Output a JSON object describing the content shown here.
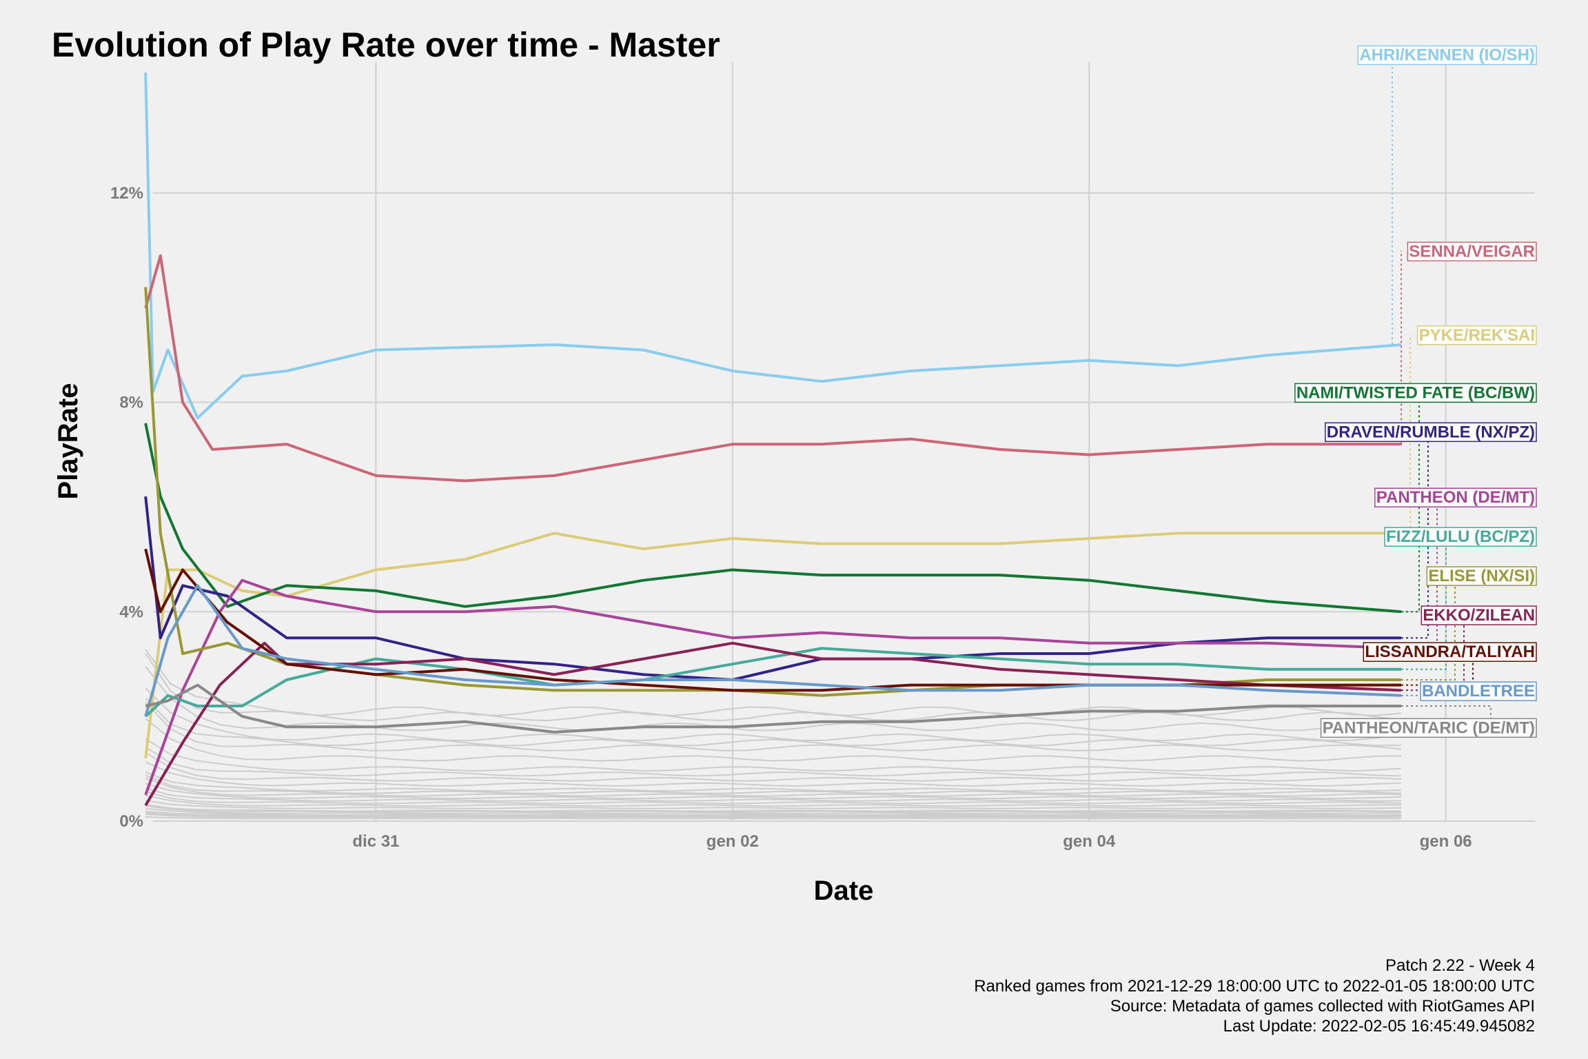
{
  "chart_data": {
    "type": "line",
    "title": "Evolution of Play Rate over time - Master",
    "xlabel": "Date",
    "ylabel": "PlayRate",
    "x_ticks": [
      "dic 31",
      "gen 02",
      "gen 04",
      "gen 06"
    ],
    "y_ticks": [
      "0%",
      "4%",
      "8%",
      "12%"
    ],
    "xlim": [
      "2021-12-29 18:00",
      "2022-01-06 12:00"
    ],
    "ylim": [
      0,
      14.5
    ],
    "grid": true,
    "legend": "direct labels at right",
    "captions": [
      "Patch 2.22 - Week 4",
      "Ranked games from 2021-12-29 18:00:00 UTC to 2022-01-05 18:00:00 UTC",
      "Source: Metadata of games collected with RiotGames API",
      "Last Update: 2022-02-05 16:45:49.945082"
    ],
    "series": [
      {
        "name": "AHRI/KENNEN (IO/SH)",
        "color": "#88ccee",
        "label_y": 14.65,
        "points": [
          [
            "2021-12-29 17:00",
            14.3
          ],
          [
            "2021-12-29 18:00",
            8.2
          ],
          [
            "2021-12-29 20:00",
            9.0
          ],
          [
            "2021-12-30 00:00",
            7.7
          ],
          [
            "2021-12-30 06:00",
            8.5
          ],
          [
            "2021-12-30 12:00",
            8.6
          ],
          [
            "2021-12-31 00:00",
            9.0
          ],
          [
            "2022-01-01 00:00",
            9.1
          ],
          [
            "2022-01-01 12:00",
            9.0
          ],
          [
            "2022-01-02 00:00",
            8.6
          ],
          [
            "2022-01-02 12:00",
            8.4
          ],
          [
            "2022-01-03 00:00",
            8.6
          ],
          [
            "2022-01-03 12:00",
            8.7
          ],
          [
            "2022-01-04 00:00",
            8.8
          ],
          [
            "2022-01-04 12:00",
            8.7
          ],
          [
            "2022-01-05 00:00",
            8.9
          ],
          [
            "2022-01-05 18:00",
            9.1
          ]
        ]
      },
      {
        "name": "SENNA/VEIGAR",
        "color": "#cc6677",
        "label_y": 10.9,
        "points": [
          [
            "2021-12-29 17:00",
            9.8
          ],
          [
            "2021-12-29 19:00",
            10.8
          ],
          [
            "2021-12-29 22:00",
            8.0
          ],
          [
            "2021-12-30 02:00",
            7.1
          ],
          [
            "2021-12-30 12:00",
            7.2
          ],
          [
            "2021-12-31 00:00",
            6.6
          ],
          [
            "2021-12-31 12:00",
            6.5
          ],
          [
            "2022-01-01 00:00",
            6.6
          ],
          [
            "2022-01-01 12:00",
            6.9
          ],
          [
            "2022-01-02 00:00",
            7.2
          ],
          [
            "2022-01-02 12:00",
            7.2
          ],
          [
            "2022-01-03 00:00",
            7.3
          ],
          [
            "2022-01-03 12:00",
            7.1
          ],
          [
            "2022-01-04 00:00",
            7.0
          ],
          [
            "2022-01-04 12:00",
            7.1
          ],
          [
            "2022-01-05 00:00",
            7.2
          ],
          [
            "2022-01-05 18:00",
            7.2
          ]
        ]
      },
      {
        "name": "PYKE/REK'SAI",
        "color": "#ddcc77",
        "label_y": 9.3,
        "points": [
          [
            "2021-12-29 17:00",
            1.2
          ],
          [
            "2021-12-29 20:00",
            4.8
          ],
          [
            "2021-12-30 00:00",
            4.8
          ],
          [
            "2021-12-30 06:00",
            4.4
          ],
          [
            "2021-12-30 12:00",
            4.3
          ],
          [
            "2021-12-31 00:00",
            4.8
          ],
          [
            "2021-12-31 12:00",
            5.0
          ],
          [
            "2022-01-01 00:00",
            5.5
          ],
          [
            "2022-01-01 12:00",
            5.2
          ],
          [
            "2022-01-02 00:00",
            5.4
          ],
          [
            "2022-01-02 12:00",
            5.3
          ],
          [
            "2022-01-03 00:00",
            5.3
          ],
          [
            "2022-01-03 12:00",
            5.3
          ],
          [
            "2022-01-04 00:00",
            5.4
          ],
          [
            "2022-01-04 12:00",
            5.5
          ],
          [
            "2022-01-05 00:00",
            5.5
          ],
          [
            "2022-01-05 18:00",
            5.5
          ]
        ]
      },
      {
        "name": "NAMI/TWISTED FATE (BC/BW)",
        "color": "#117733",
        "label_y": 8.2,
        "points": [
          [
            "2021-12-29 17:00",
            7.6
          ],
          [
            "2021-12-29 19:00",
            6.2
          ],
          [
            "2021-12-29 22:00",
            5.2
          ],
          [
            "2021-12-30 04:00",
            4.1
          ],
          [
            "2021-12-30 12:00",
            4.5
          ],
          [
            "2021-12-31 00:00",
            4.4
          ],
          [
            "2021-12-31 12:00",
            4.1
          ],
          [
            "2022-01-01 00:00",
            4.3
          ],
          [
            "2022-01-01 12:00",
            4.6
          ],
          [
            "2022-01-02 00:00",
            4.8
          ],
          [
            "2022-01-02 12:00",
            4.7
          ],
          [
            "2022-01-03 00:00",
            4.7
          ],
          [
            "2022-01-03 12:00",
            4.7
          ],
          [
            "2022-01-04 00:00",
            4.6
          ],
          [
            "2022-01-04 12:00",
            4.4
          ],
          [
            "2022-01-05 00:00",
            4.2
          ],
          [
            "2022-01-05 18:00",
            4.0
          ]
        ]
      },
      {
        "name": "DRAVEN/RUMBLE (NX/PZ)",
        "color": "#332288",
        "label_y": 7.45,
        "points": [
          [
            "2021-12-29 17:00",
            6.2
          ],
          [
            "2021-12-29 19:00",
            3.5
          ],
          [
            "2021-12-29 22:00",
            4.5
          ],
          [
            "2021-12-30 04:00",
            4.3
          ],
          [
            "2021-12-30 12:00",
            3.5
          ],
          [
            "2021-12-31 00:00",
            3.5
          ],
          [
            "2021-12-31 12:00",
            3.1
          ],
          [
            "2022-01-01 00:00",
            3.0
          ],
          [
            "2022-01-01 12:00",
            2.8
          ],
          [
            "2022-01-02 00:00",
            2.7
          ],
          [
            "2022-01-02 12:00",
            3.1
          ],
          [
            "2022-01-03 00:00",
            3.1
          ],
          [
            "2022-01-03 12:00",
            3.2
          ],
          [
            "2022-01-04 00:00",
            3.2
          ],
          [
            "2022-01-04 12:00",
            3.4
          ],
          [
            "2022-01-05 00:00",
            3.5
          ],
          [
            "2022-01-05 18:00",
            3.5
          ]
        ]
      },
      {
        "name": "PANTHEON (DE/MT)",
        "color": "#aa4499",
        "label_y": 6.2,
        "points": [
          [
            "2021-12-29 17:00",
            0.5
          ],
          [
            "2021-12-29 22:00",
            2.5
          ],
          [
            "2021-12-30 03:00",
            4.0
          ],
          [
            "2021-12-30 06:00",
            4.6
          ],
          [
            "2021-12-30 12:00",
            4.3
          ],
          [
            "2021-12-31 00:00",
            4.0
          ],
          [
            "2021-12-31 12:00",
            4.0
          ],
          [
            "2022-01-01 00:00",
            4.1
          ],
          [
            "2022-01-01 12:00",
            3.8
          ],
          [
            "2022-01-02 00:00",
            3.5
          ],
          [
            "2022-01-02 12:00",
            3.6
          ],
          [
            "2022-01-03 00:00",
            3.5
          ],
          [
            "2022-01-03 12:00",
            3.5
          ],
          [
            "2022-01-04 00:00",
            3.4
          ],
          [
            "2022-01-04 12:00",
            3.4
          ],
          [
            "2022-01-05 00:00",
            3.4
          ],
          [
            "2022-01-05 18:00",
            3.3
          ]
        ]
      },
      {
        "name": "FIZZ/LULU (BC/PZ)",
        "color": "#44aa99",
        "label_y": 5.45,
        "points": [
          [
            "2021-12-29 17:00",
            2.0
          ],
          [
            "2021-12-29 20:00",
            2.4
          ],
          [
            "2021-12-30 00:00",
            2.2
          ],
          [
            "2021-12-30 06:00",
            2.2
          ],
          [
            "2021-12-30 12:00",
            2.7
          ],
          [
            "2021-12-31 00:00",
            3.1
          ],
          [
            "2021-12-31 12:00",
            2.9
          ],
          [
            "2022-01-01 00:00",
            2.6
          ],
          [
            "2022-01-01 12:00",
            2.7
          ],
          [
            "2022-01-02 00:00",
            3.0
          ],
          [
            "2022-01-02 12:00",
            3.3
          ],
          [
            "2022-01-03 00:00",
            3.2
          ],
          [
            "2022-01-03 12:00",
            3.1
          ],
          [
            "2022-01-04 00:00",
            3.0
          ],
          [
            "2022-01-04 12:00",
            3.0
          ],
          [
            "2022-01-05 00:00",
            2.9
          ],
          [
            "2022-01-05 18:00",
            2.9
          ]
        ]
      },
      {
        "name": "ELISE (NX/SI)",
        "color": "#999933",
        "label_y": 4.7,
        "points": [
          [
            "2021-12-29 17:00",
            10.2
          ],
          [
            "2021-12-29 19:00",
            5.5
          ],
          [
            "2021-12-29 22:00",
            3.2
          ],
          [
            "2021-12-30 04:00",
            3.4
          ],
          [
            "2021-12-30 12:00",
            3.0
          ],
          [
            "2021-12-31 00:00",
            2.8
          ],
          [
            "2021-12-31 12:00",
            2.6
          ],
          [
            "2022-01-01 00:00",
            2.5
          ],
          [
            "2022-01-01 12:00",
            2.5
          ],
          [
            "2022-01-02 00:00",
            2.5
          ],
          [
            "2022-01-02 12:00",
            2.4
          ],
          [
            "2022-01-03 00:00",
            2.5
          ],
          [
            "2022-01-03 12:00",
            2.6
          ],
          [
            "2022-01-04 00:00",
            2.6
          ],
          [
            "2022-01-04 12:00",
            2.6
          ],
          [
            "2022-01-05 00:00",
            2.7
          ],
          [
            "2022-01-05 18:00",
            2.7
          ]
        ]
      },
      {
        "name": "EKKO/ZILEAN",
        "color": "#882255",
        "label_y": 3.95,
        "points": [
          [
            "2021-12-29 17:00",
            0.3
          ],
          [
            "2021-12-29 22:00",
            1.5
          ],
          [
            "2021-12-30 03:00",
            2.6
          ],
          [
            "2021-12-30 09:00",
            3.4
          ],
          [
            "2021-12-30 12:00",
            3.0
          ],
          [
            "2021-12-31 00:00",
            3.0
          ],
          [
            "2021-12-31 12:00",
            3.1
          ],
          [
            "2022-01-01 00:00",
            2.8
          ],
          [
            "2022-01-01 12:00",
            3.1
          ],
          [
            "2022-01-02 00:00",
            3.4
          ],
          [
            "2022-01-02 12:00",
            3.1
          ],
          [
            "2022-01-03 00:00",
            3.1
          ],
          [
            "2022-01-03 12:00",
            2.9
          ],
          [
            "2022-01-04 00:00",
            2.8
          ],
          [
            "2022-01-04 12:00",
            2.7
          ],
          [
            "2022-01-05 00:00",
            2.6
          ],
          [
            "2022-01-05 18:00",
            2.5
          ]
        ]
      },
      {
        "name": "LISSANDRA/TALIYAH",
        "color": "#661100",
        "label_y": 3.25,
        "points": [
          [
            "2021-12-29 17:00",
            5.2
          ],
          [
            "2021-12-29 19:00",
            4.0
          ],
          [
            "2021-12-29 22:00",
            4.8
          ],
          [
            "2021-12-30 04:00",
            3.8
          ],
          [
            "2021-12-30 12:00",
            3.0
          ],
          [
            "2021-12-31 00:00",
            2.8
          ],
          [
            "2021-12-31 12:00",
            2.9
          ],
          [
            "2022-01-01 00:00",
            2.7
          ],
          [
            "2022-01-01 12:00",
            2.6
          ],
          [
            "2022-01-02 00:00",
            2.5
          ],
          [
            "2022-01-02 12:00",
            2.5
          ],
          [
            "2022-01-03 00:00",
            2.6
          ],
          [
            "2022-01-03 12:00",
            2.6
          ],
          [
            "2022-01-04 00:00",
            2.6
          ],
          [
            "2022-01-04 12:00",
            2.6
          ],
          [
            "2022-01-05 00:00",
            2.6
          ],
          [
            "2022-01-05 18:00",
            2.6
          ]
        ]
      },
      {
        "name": "BANDLETREE",
        "color": "#6699cc",
        "label_y": 2.5,
        "points": [
          [
            "2021-12-29 17:00",
            2.0
          ],
          [
            "2021-12-29 20:00",
            3.5
          ],
          [
            "2021-12-30 00:00",
            4.5
          ],
          [
            "2021-12-30 06:00",
            3.3
          ],
          [
            "2021-12-30 12:00",
            3.1
          ],
          [
            "2021-12-31 00:00",
            2.9
          ],
          [
            "2021-12-31 12:00",
            2.7
          ],
          [
            "2022-01-01 00:00",
            2.6
          ],
          [
            "2022-01-01 12:00",
            2.7
          ],
          [
            "2022-01-02 00:00",
            2.7
          ],
          [
            "2022-01-02 12:00",
            2.6
          ],
          [
            "2022-01-03 00:00",
            2.5
          ],
          [
            "2022-01-03 12:00",
            2.5
          ],
          [
            "2022-01-04 00:00",
            2.6
          ],
          [
            "2022-01-04 12:00",
            2.6
          ],
          [
            "2022-01-05 00:00",
            2.5
          ],
          [
            "2022-01-05 18:00",
            2.4
          ]
        ]
      },
      {
        "name": "PANTHEON/TARIC (DE/MT)",
        "color": "#888888",
        "label_y": 1.8,
        "points": [
          [
            "2021-12-29 17:00",
            2.2
          ],
          [
            "2021-12-29 20:00",
            2.3
          ],
          [
            "2021-12-30 00:00",
            2.6
          ],
          [
            "2021-12-30 06:00",
            2.0
          ],
          [
            "2021-12-30 12:00",
            1.8
          ],
          [
            "2021-12-31 00:00",
            1.8
          ],
          [
            "2021-12-31 12:00",
            1.9
          ],
          [
            "2022-01-01 00:00",
            1.7
          ],
          [
            "2022-01-01 12:00",
            1.8
          ],
          [
            "2022-01-02 00:00",
            1.8
          ],
          [
            "2022-01-02 12:00",
            1.9
          ],
          [
            "2022-01-03 00:00",
            1.9
          ],
          [
            "2022-01-03 12:00",
            2.0
          ],
          [
            "2022-01-04 00:00",
            2.1
          ],
          [
            "2022-01-04 12:00",
            2.1
          ],
          [
            "2022-01-05 00:00",
            2.2
          ],
          [
            "2022-01-05 18:00",
            2.2
          ]
        ]
      }
    ],
    "background_series_color": "#cccccc",
    "background_series_levels": [
      0.05,
      0.08,
      0.1,
      0.12,
      0.15,
      0.18,
      0.2,
      0.25,
      0.3,
      0.35,
      0.4,
      0.45,
      0.5,
      0.55,
      0.6,
      0.7,
      0.8,
      0.9,
      1.0,
      1.2,
      1.4,
      1.5,
      1.6,
      1.8,
      2.0,
      2.1
    ]
  }
}
